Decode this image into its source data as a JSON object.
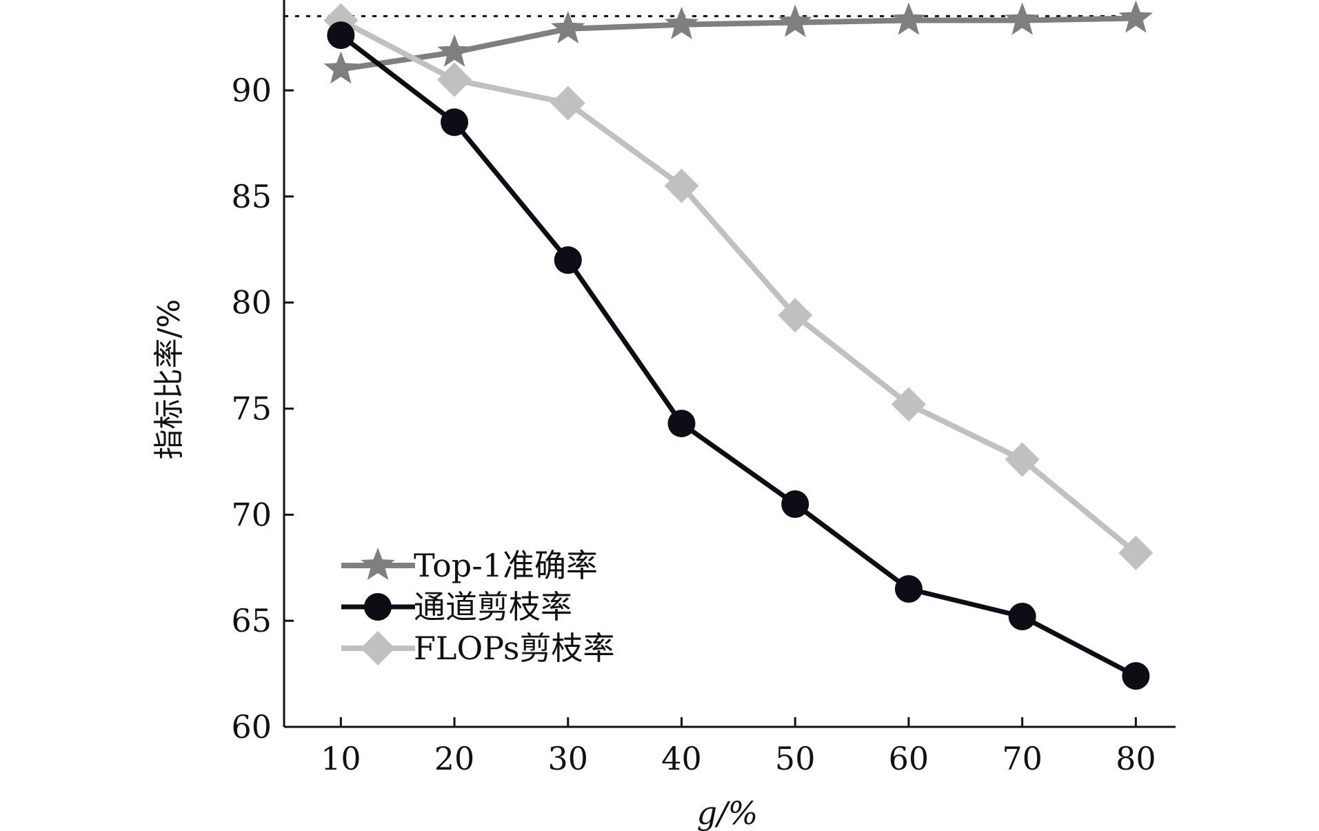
{
  "chart_data": {
    "type": "line",
    "title": "",
    "xlabel": "g/%",
    "ylabel": "指标比率/%",
    "x": [
      10,
      20,
      30,
      40,
      50,
      60,
      70,
      80
    ],
    "xlim": [
      5,
      83.5
    ],
    "ylim": [
      60,
      94
    ],
    "xticks": [
      10,
      20,
      30,
      40,
      50,
      60,
      70,
      80
    ],
    "yticks": [
      60,
      65,
      70,
      75,
      80,
      85,
      90
    ],
    "grid": false,
    "legend_position": "lower-left",
    "reference_line": {
      "y": 93.5,
      "style": "dotted"
    },
    "series": [
      {
        "name": "Top-1准确率",
        "marker": "star",
        "color": "#7f7f7f",
        "values": [
          91.0,
          91.8,
          92.9,
          93.1,
          93.2,
          93.3,
          93.3,
          93.4
        ]
      },
      {
        "name": "通道剪枝率",
        "marker": "circle",
        "color": "#0d0d16",
        "values": [
          92.6,
          88.5,
          82.0,
          74.3,
          70.5,
          66.5,
          65.2,
          62.4
        ]
      },
      {
        "name": "FLOPs剪枝率",
        "marker": "diamond",
        "color": "#c0c0c0",
        "values": [
          93.3,
          90.5,
          89.4,
          85.5,
          79.4,
          75.2,
          72.6,
          68.2
        ]
      }
    ]
  }
}
